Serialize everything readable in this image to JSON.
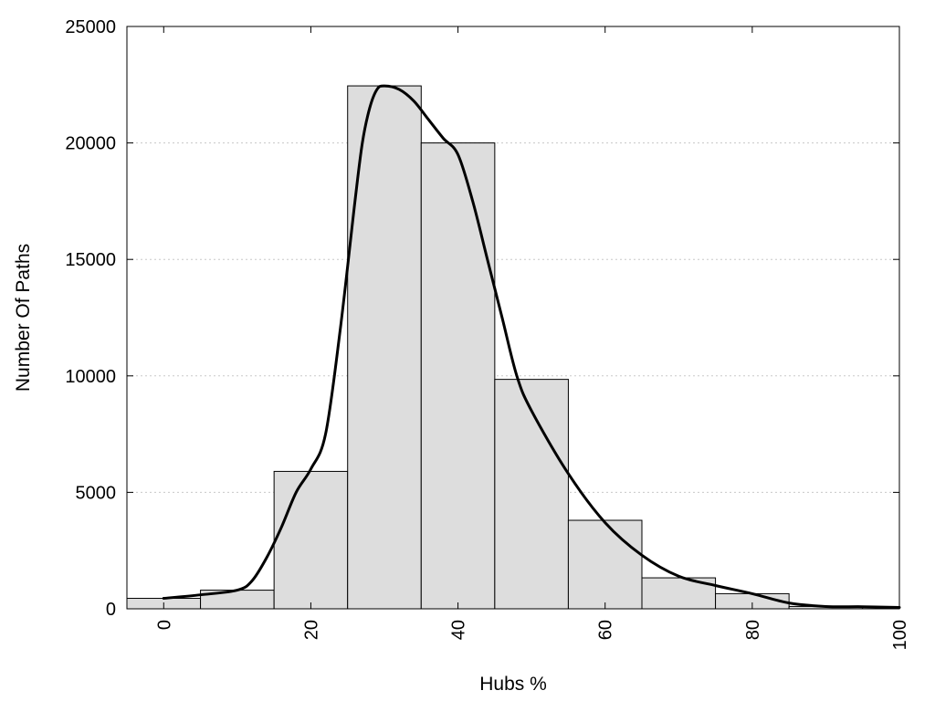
{
  "chart_data": {
    "type": "bar",
    "xlabel": "Hubs %",
    "ylabel": "Number Of Paths",
    "xlim": [
      -5,
      100
    ],
    "ylim": [
      0,
      25000
    ],
    "y_ticks": [
      0,
      5000,
      10000,
      15000,
      20000,
      25000
    ],
    "x_ticks": [
      0,
      20,
      40,
      60,
      80,
      100
    ],
    "grid": "horizontal dotted",
    "bin_width": 10,
    "bins": [
      {
        "x": 0,
        "value": 450
      },
      {
        "x": 10,
        "value": 800
      },
      {
        "x": 20,
        "value": 5900
      },
      {
        "x": 30,
        "value": 22450
      },
      {
        "x": 40,
        "value": 20000
      },
      {
        "x": 50,
        "value": 9850
      },
      {
        "x": 60,
        "value": 3800
      },
      {
        "x": 70,
        "value": 1330
      },
      {
        "x": 80,
        "value": 650
      },
      {
        "x": 90,
        "value": 100
      }
    ],
    "density_curve": {
      "x": [
        0,
        5,
        10,
        12,
        14,
        16,
        18,
        20,
        22,
        24,
        26,
        27,
        28,
        29,
        30,
        32,
        34,
        36,
        38,
        40,
        42,
        44,
        46,
        48,
        50,
        55,
        60,
        65,
        70,
        75,
        80,
        85,
        90,
        95,
        100
      ],
      "y": [
        450,
        600,
        800,
        1200,
        2200,
        3500,
        5000,
        6000,
        7500,
        12000,
        17500,
        20000,
        21500,
        22300,
        22450,
        22300,
        21800,
        21000,
        20200,
        19500,
        17500,
        15000,
        12500,
        10000,
        8500,
        5800,
        3700,
        2300,
        1400,
        1000,
        650,
        250,
        100,
        90,
        60
      ]
    },
    "bar_color": "#dddddd",
    "line_color": "#000000"
  }
}
